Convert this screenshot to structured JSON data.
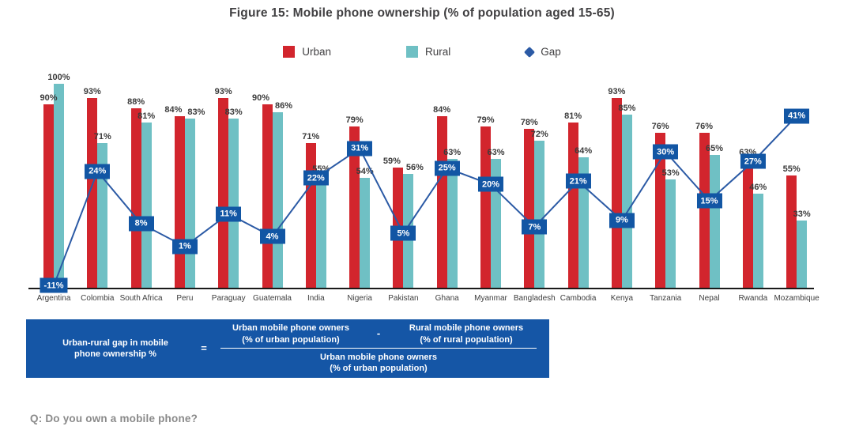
{
  "title": "Figure 15: Mobile phone ownership (% of population aged 15-65)",
  "legend": {
    "urban": "Urban",
    "rural": "Rural",
    "gap": "Gap"
  },
  "colors": {
    "urban": "#d2252d",
    "rural": "#6fc0c4",
    "gap_line": "#2b5aa5",
    "gap_label_bg": "#1256a4",
    "formula_bg": "#1556a6",
    "axis": "#1a1a1a",
    "title_text": "#414042",
    "value_label": "#3b3b3b",
    "category_label": "#3d3d3d",
    "question_text": "#8a8a8a"
  },
  "chart_data": {
    "type": "bar",
    "title": "Figure 15: Mobile phone ownership (% of population aged 15-65)",
    "categories": [
      "Argentina",
      "Colombia",
      "South Africa",
      "Peru",
      "Paraguay",
      "Guatemala",
      "India",
      "Nigeria",
      "Pakistan",
      "Ghana",
      "Myanmar",
      "Bangladesh",
      "Cambodia",
      "Kenya",
      "Tanzania",
      "Nepal",
      "Rwanda",
      "Mozambique"
    ],
    "series": [
      {
        "name": "Urban",
        "type": "bar",
        "color": "#d2252d",
        "values": [
          90,
          93,
          88,
          84,
          93,
          90,
          71,
          79,
          59,
          84,
          79,
          78,
          81,
          93,
          76,
          76,
          63,
          55
        ]
      },
      {
        "name": "Rural",
        "type": "bar",
        "color": "#6fc0c4",
        "values": [
          100,
          71,
          81,
          83,
          83,
          86,
          55,
          54,
          56,
          63,
          63,
          72,
          64,
          85,
          53,
          65,
          46,
          33
        ]
      },
      {
        "name": "Gap",
        "type": "line",
        "color": "#2b5aa5",
        "values": [
          -11,
          24,
          8,
          1,
          11,
          4,
          22,
          31,
          5,
          25,
          20,
          7,
          21,
          9,
          30,
          15,
          27,
          41
        ]
      }
    ],
    "value_suffix": "%",
    "ylim": [
      0,
      100
    ],
    "grid": false,
    "legend_position": "top",
    "bar_value_labels": true,
    "gap_labels_on_line": true,
    "xlabel": "",
    "ylabel": ""
  },
  "formula": {
    "lhs_line1": "Urban-rural gap in mobile",
    "lhs_line2": "phone ownership %",
    "equals": "=",
    "num_left_line1": "Urban mobile phone owners",
    "num_left_line2": "(% of urban population)",
    "minus": "-",
    "num_right_line1": "Rural mobile phone owners",
    "num_right_line2": "(% of rural population)",
    "den_line1": "Urban mobile phone owners",
    "den_line2": "(% of urban population)"
  },
  "question": "Q: Do you own a mobile phone?"
}
